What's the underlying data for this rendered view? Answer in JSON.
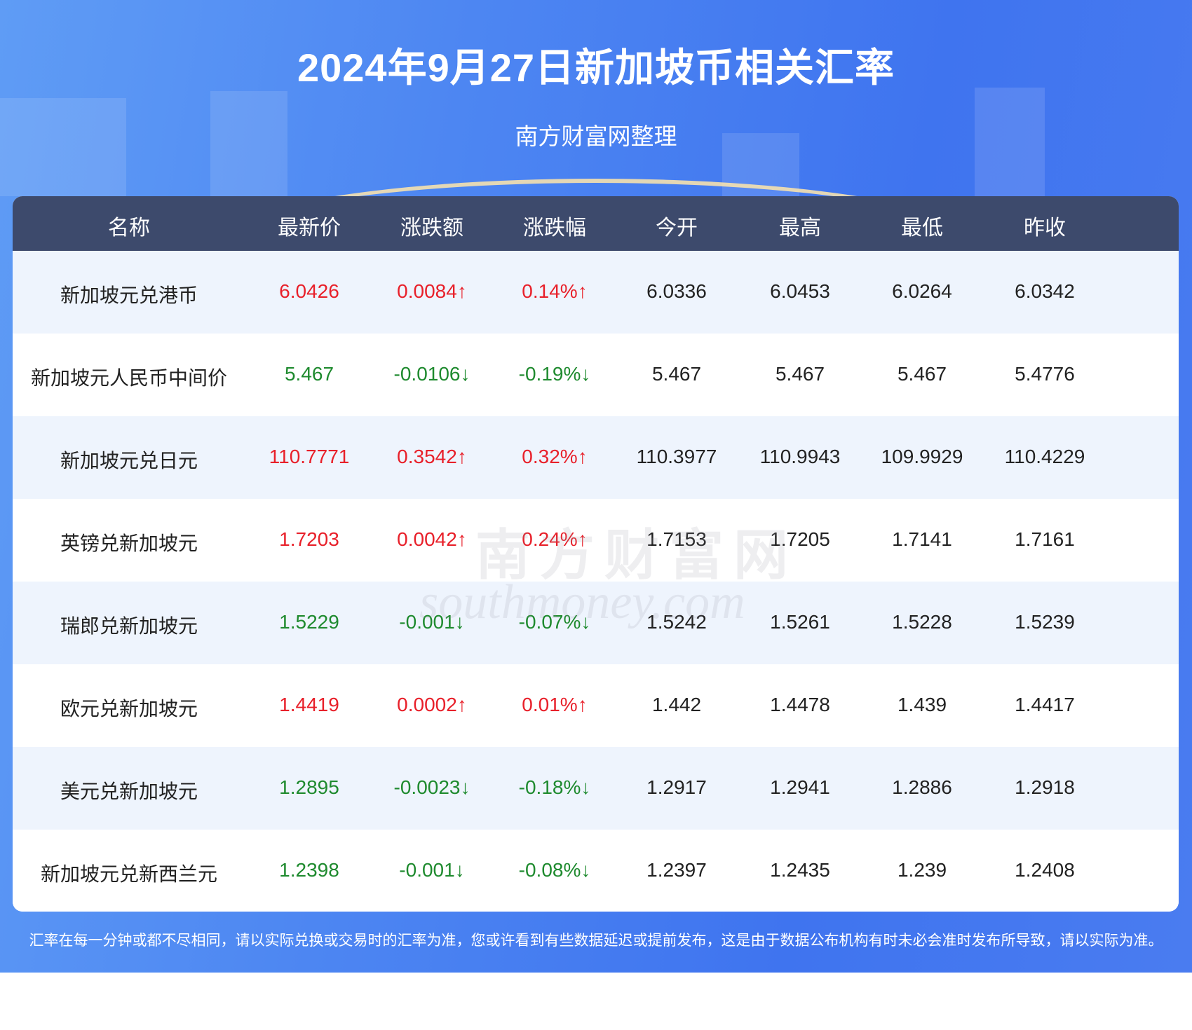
{
  "header": {
    "title": "2024年9月27日新加坡币相关汇率",
    "subtitle": "南方财富网整理"
  },
  "table": {
    "headers": [
      "名称",
      "最新价",
      "涨跌额",
      "涨跌幅",
      "今开",
      "最高",
      "最低",
      "昨收"
    ],
    "rows": [
      [
        "新加坡元兑港币",
        "6.0426",
        "0.0084↑",
        "0.14%↑",
        "6.0336",
        "6.0453",
        "6.0264",
        "6.0342"
      ],
      [
        "新加坡元人民币中间价",
        "5.467",
        "-0.0106↓",
        "-0.19%↓",
        "5.467",
        "5.467",
        "5.467",
        "5.4776"
      ],
      [
        "新加坡元兑日元",
        "110.7771",
        "0.3542↑",
        "0.32%↑",
        "110.3977",
        "110.9943",
        "109.9929",
        "110.4229"
      ],
      [
        "英镑兑新加坡元",
        "1.7203",
        "0.0042↑",
        "0.24%↑",
        "1.7153",
        "1.7205",
        "1.7141",
        "1.7161"
      ],
      [
        "瑞郎兑新加坡元",
        "1.5229",
        "-0.001↓",
        "-0.07%↓",
        "1.5242",
        "1.5261",
        "1.5228",
        "1.5239"
      ],
      [
        "欧元兑新加坡元",
        "1.4419",
        "0.0002↑",
        "0.01%↑",
        "1.442",
        "1.4478",
        "1.439",
        "1.4417"
      ],
      [
        "美元兑新加坡元",
        "1.2895",
        "-0.0023↓",
        "-0.18%↓",
        "1.2917",
        "1.2941",
        "1.2886",
        "1.2918"
      ],
      [
        "新加坡元兑新西兰元",
        "1.2398",
        "-0.001↓",
        "-0.08%↓",
        "1.2397",
        "1.2435",
        "1.239",
        "1.2408"
      ]
    ]
  },
  "watermark": {
    "cn": "南方财富网",
    "en": "southmoney.com"
  },
  "footer": {
    "note": "汇率在每一分钟或都不尽相同，请以实际兑换或交易时的汇率为准，您或许看到有些数据延迟或提前发布，这是由于数据公布机构有时未必会准时发布所导致，请以实际为准。"
  }
}
